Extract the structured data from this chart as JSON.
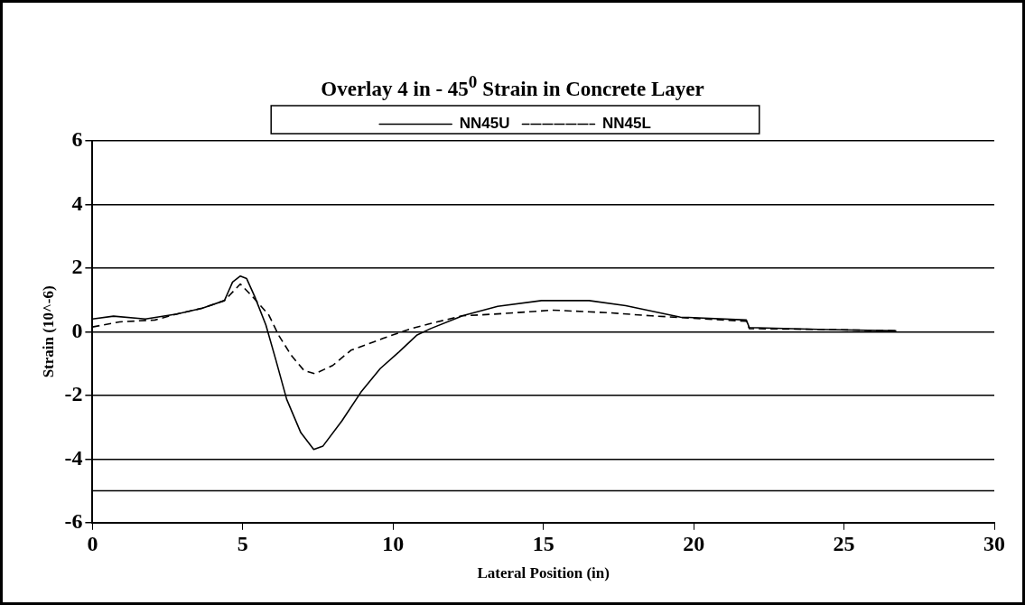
{
  "chart_data": {
    "type": "line",
    "title": "Overlay 4 in  - 45$^{0}$ Strain in Concrete Layer",
    "xlabel": "Lateral Position (in)",
    "ylabel": "Strain (10^-6)",
    "xlim": [
      0,
      30
    ],
    "xticks": [
      0,
      5,
      10,
      15,
      20,
      25,
      30
    ],
    "ylim": [
      -6,
      6
    ],
    "yticks": [
      -6,
      -4,
      -2,
      0,
      2,
      4,
      6
    ],
    "grid": "y",
    "legend": "top",
    "marker": "none",
    "ref_lines": [
      {
        "axis": "y",
        "value": -5,
        "color": "#000000"
      }
    ],
    "series": [
      {
        "name": "NN45U",
        "color": "#000000",
        "line_style": "solid",
        "x": [
          0,
          0.7,
          1.76,
          2.81,
          3.66,
          4.39,
          4.66,
          4.92,
          5.13,
          5.4,
          5.77,
          6.09,
          6.46,
          6.93,
          7.36,
          7.67,
          8.3,
          8.93,
          9.57,
          10.2,
          10.8,
          11.25,
          12.3,
          13.48,
          14.94,
          16.52,
          17.74,
          19.56,
          21.75,
          21.85,
          24.43,
          26.74
        ],
        "values": [
          0.4,
          0.49,
          0.4,
          0.56,
          0.74,
          0.98,
          1.56,
          1.75,
          1.67,
          1.1,
          0.21,
          -0.85,
          -2.12,
          -3.17,
          -3.7,
          -3.59,
          -2.8,
          -1.9,
          -1.16,
          -0.63,
          -0.1,
          0.1,
          0.5,
          0.8,
          0.98,
          0.98,
          0.82,
          0.46,
          0.37,
          0.13,
          0.07,
          0.03
        ]
      },
      {
        "name": "NN45L",
        "color": "#000000",
        "line_style": "dashed",
        "x": [
          0,
          0.9,
          2.08,
          2.81,
          3.66,
          4.39,
          4.92,
          5.3,
          5.87,
          6.2,
          6.62,
          7.04,
          7.4,
          7.99,
          8.6,
          9.66,
          10.6,
          11.25,
          12.3,
          13.48,
          15.3,
          17.13,
          18.6,
          21.75,
          21.85,
          24.43,
          26.74
        ],
        "values": [
          0.15,
          0.31,
          0.37,
          0.56,
          0.74,
          0.98,
          1.5,
          1.13,
          0.52,
          -0.12,
          -0.75,
          -1.22,
          -1.32,
          -1.06,
          -0.58,
          -0.21,
          0.1,
          0.26,
          0.5,
          0.56,
          0.68,
          0.6,
          0.5,
          0.33,
          0.1,
          0.07,
          0.03
        ]
      }
    ]
  }
}
